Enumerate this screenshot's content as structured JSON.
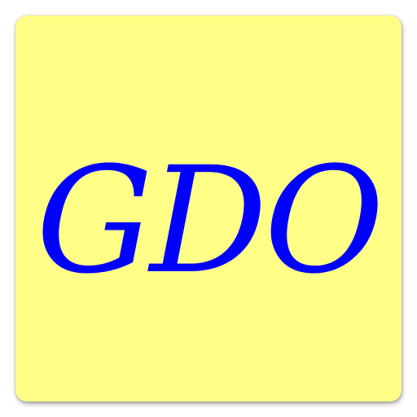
{
  "app_icon": {
    "label": "GDO",
    "background_color": "#fffe87",
    "text_color": "#0000ff"
  }
}
